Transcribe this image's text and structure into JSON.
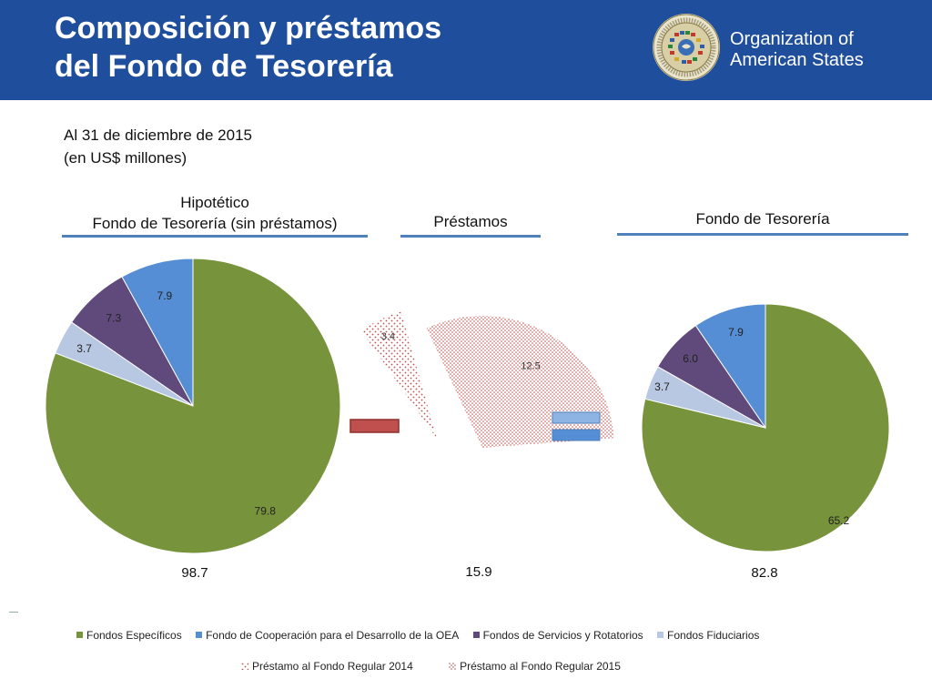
{
  "header": {
    "title_line1": "Composición y préstamos",
    "title_line2": "del Fondo de Tesorería",
    "org_line1": "Organization of",
    "org_line2": "American States",
    "org_text_color": "#ffffff"
  },
  "subtitle": {
    "line1": "Al 31 de diciembre de 2015",
    "line2": "(en US$ millones)"
  },
  "sections": {
    "hypothetical_line1": "Hipotético",
    "hypothetical_line2": "Fondo de Tesorería (sin préstamos)",
    "loans": "Préstamos",
    "treasury": "Fondo de Tesorería"
  },
  "colors": {
    "header_bg": "#1f4e9c",
    "especificos": "#77933c",
    "cooperacion": "#558ed5",
    "servicios": "#604a7b",
    "fiduciarios": "#b9c8e2",
    "loan_pattern": "#c0504d",
    "minus_sign": "#c0504d",
    "equals_sign": "#558ed5"
  },
  "chart_data": [
    {
      "type": "pie",
      "title": "Hipotético Fondo de Tesorería (sin préstamos)",
      "total": "98.7",
      "slices": [
        {
          "name": "Fondos Específicos",
          "value": 79.8,
          "label": "79.8",
          "color": "#77933c"
        },
        {
          "name": "Fondo de Cooperación para el Desarrollo de la OEA",
          "value": 7.9,
          "label": "7.9",
          "color": "#558ed5"
        },
        {
          "name": "Fondos de Servicios y Rotatorios",
          "value": 7.3,
          "label": "7.3",
          "color": "#604a7b"
        },
        {
          "name": "Fondos Fiduciarios",
          "value": 3.7,
          "label": "3.7",
          "color": "#b9c8e2"
        }
      ]
    },
    {
      "type": "pie",
      "title": "Préstamos",
      "total": "15.9",
      "slices": [
        {
          "name": "Préstamo al Fondo Regular 2014",
          "value": 3.4,
          "label": "3.4",
          "pattern": "sparse-dots"
        },
        {
          "name": "Préstamo al Fondo Regular 2015",
          "value": 12.5,
          "label": "12.5",
          "pattern": "dense-dots"
        }
      ]
    },
    {
      "type": "pie",
      "title": "Fondo de Tesorería",
      "total": "82.8",
      "slices": [
        {
          "name": "Fondos Específicos",
          "value": 65.2,
          "label": "65.2",
          "color": "#77933c"
        },
        {
          "name": "Fondo de Cooperación para el Desarrollo de la OEA",
          "value": 7.9,
          "label": "7.9",
          "color": "#558ed5"
        },
        {
          "name": "Fondos de Servicios y Rotatorios",
          "value": 6.0,
          "label": "6.0",
          "color": "#604a7b"
        },
        {
          "name": "Fondos Fiduciarios",
          "value": 3.7,
          "label": "3.7",
          "color": "#b9c8e2"
        }
      ]
    }
  ],
  "legend": {
    "row1": [
      {
        "label": "Fondos Específicos",
        "color": "#77933c"
      },
      {
        "label": "Fondo de Cooperación para el Desarrollo de la OEA",
        "color": "#558ed5"
      },
      {
        "label": "Fondos de Servicios y Rotatorios",
        "color": "#604a7b"
      },
      {
        "label": "Fondos Fiduciarios",
        "color": "#b9c8e2"
      }
    ],
    "row2": [
      {
        "label": "Préstamo al Fondo Regular 2014",
        "pattern": "sparse-dots"
      },
      {
        "label": "Préstamo al Fondo Regular 2015",
        "pattern": "dense-dots"
      }
    ]
  }
}
